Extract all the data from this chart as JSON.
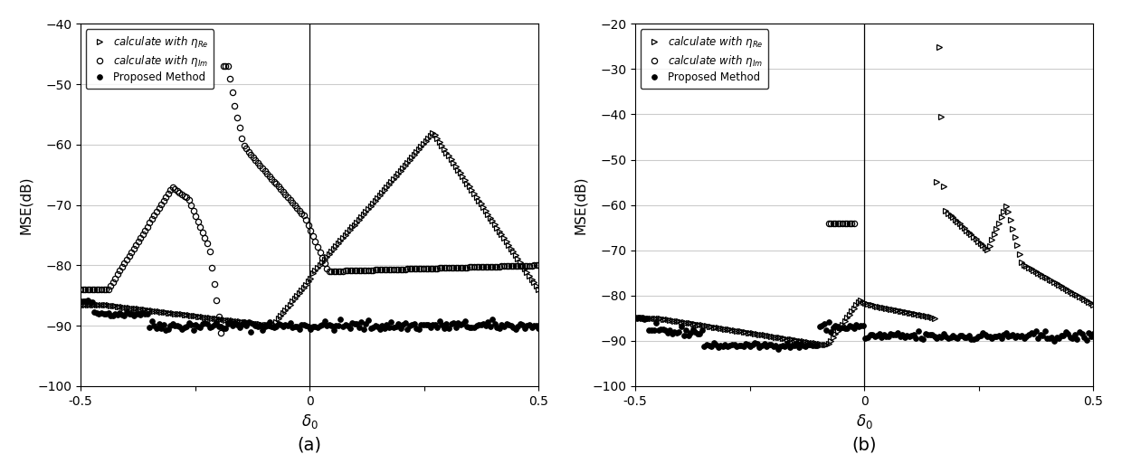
{
  "title_a": "(a)",
  "title_b": "(b)",
  "xlabel": "$\\delta_0$",
  "ylabel": "MSE(dB)",
  "xlim": [
    -0.5,
    0.5
  ],
  "ylim_a": [
    -100,
    -40
  ],
  "ylim_b": [
    -100,
    -20
  ],
  "yticks_a": [
    -100,
    -90,
    -80,
    -70,
    -60,
    -50,
    -40
  ],
  "yticks_b": [
    -100,
    -90,
    -80,
    -70,
    -60,
    -50,
    -40,
    -30,
    -20
  ],
  "xticks": [
    -0.5,
    -0.25,
    0.0,
    0.25,
    0.5
  ],
  "xtick_labels_a": [
    "-0.5",
    "",
    "0",
    "",
    "0.5"
  ],
  "xtick_labels_b": [
    "-0.5",
    "",
    "0",
    "",
    "0.5"
  ],
  "legend_labels": [
    "calculate with $\\eta_{Re}$",
    "calculate with $\\eta_{Im}$",
    "Proposed Method"
  ],
  "background_color": "#ffffff",
  "grid_color": "#cccccc"
}
